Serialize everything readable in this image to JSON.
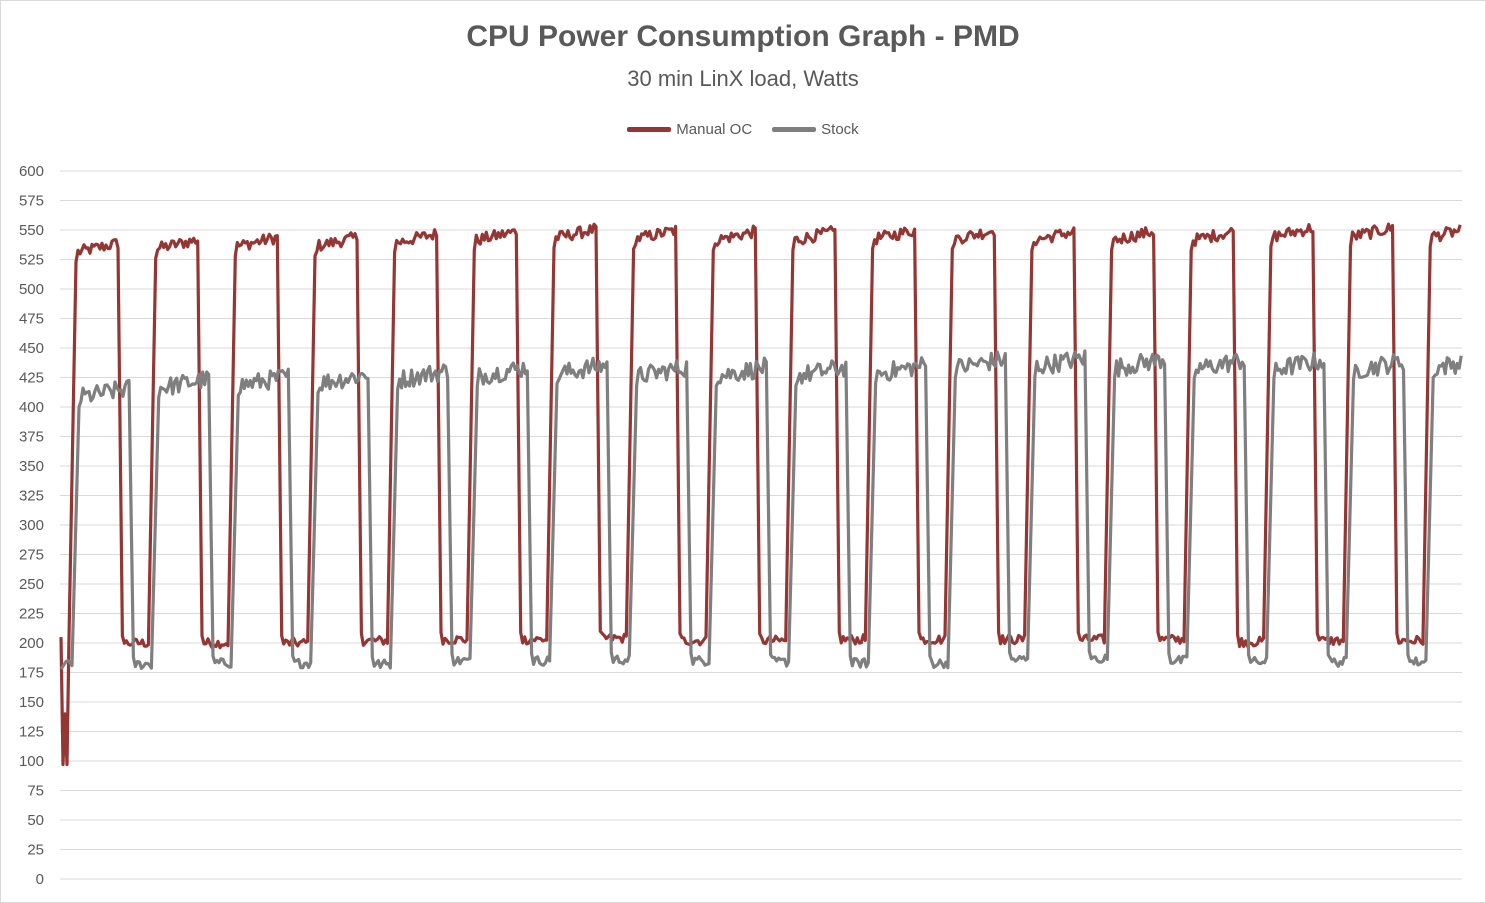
{
  "chart_data": {
    "type": "line",
    "title": "CPU Power Consumption Graph - PMD",
    "subtitle": "30 min LinX load, Watts",
    "ylim": [
      0,
      600
    ],
    "y_ticks": [
      0,
      25,
      50,
      75,
      100,
      125,
      150,
      175,
      200,
      225,
      250,
      275,
      300,
      325,
      350,
      375,
      400,
      425,
      450,
      475,
      500,
      525,
      550,
      575,
      600
    ],
    "grid": true,
    "legend_position": "top",
    "series": [
      {
        "name": "Manual OC",
        "color": "#943634",
        "cycles": 18,
        "x": [
          0,
          0.5,
          1,
          1.5,
          2,
          2.5,
          3,
          3.5,
          4,
          4.5,
          5,
          5.5,
          6,
          6.5,
          7,
          7.5,
          8,
          8.5,
          9,
          9.5,
          10,
          10.5,
          11,
          11.5,
          12,
          12.5,
          13,
          13.5,
          14,
          14.5,
          15,
          15.5,
          16,
          16.5,
          17,
          17.5,
          18
        ],
        "high_values": [
          535,
          538,
          540,
          540,
          543,
          545,
          547,
          546,
          545,
          545,
          546,
          546,
          545,
          545,
          545,
          548,
          548,
          548
        ],
        "low_values": [
          200,
          200,
          200,
          202,
          203,
          203,
          204,
          202,
          202,
          203,
          203,
          203,
          203,
          203,
          201,
          202,
          202,
          205
        ],
        "start_dip": 97
      },
      {
        "name": "Stock",
        "color": "#7f7f7f",
        "cycles": 18,
        "high_values": [
          412,
          420,
          422,
          424,
          427,
          430,
          432,
          430,
          430,
          430,
          432,
          437,
          438,
          437,
          436,
          436,
          435,
          437
        ],
        "low_values": [
          182,
          183,
          183,
          182,
          185,
          185,
          186,
          185,
          184,
          183,
          183,
          186,
          187,
          185,
          184,
          184,
          184,
          184
        ]
      }
    ]
  }
}
